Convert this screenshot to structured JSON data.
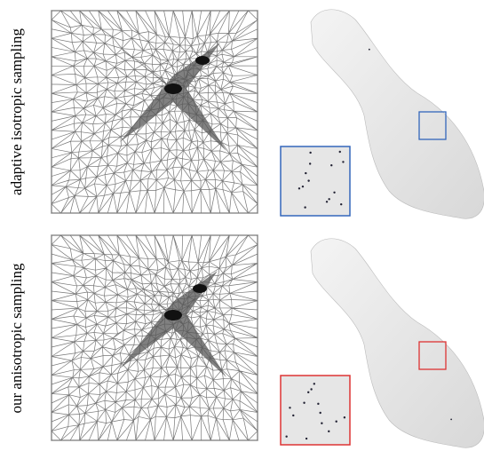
{
  "labels": {
    "top": "adaptive isotropic sampling",
    "bottom": "our anisotropic sampling"
  }
}
